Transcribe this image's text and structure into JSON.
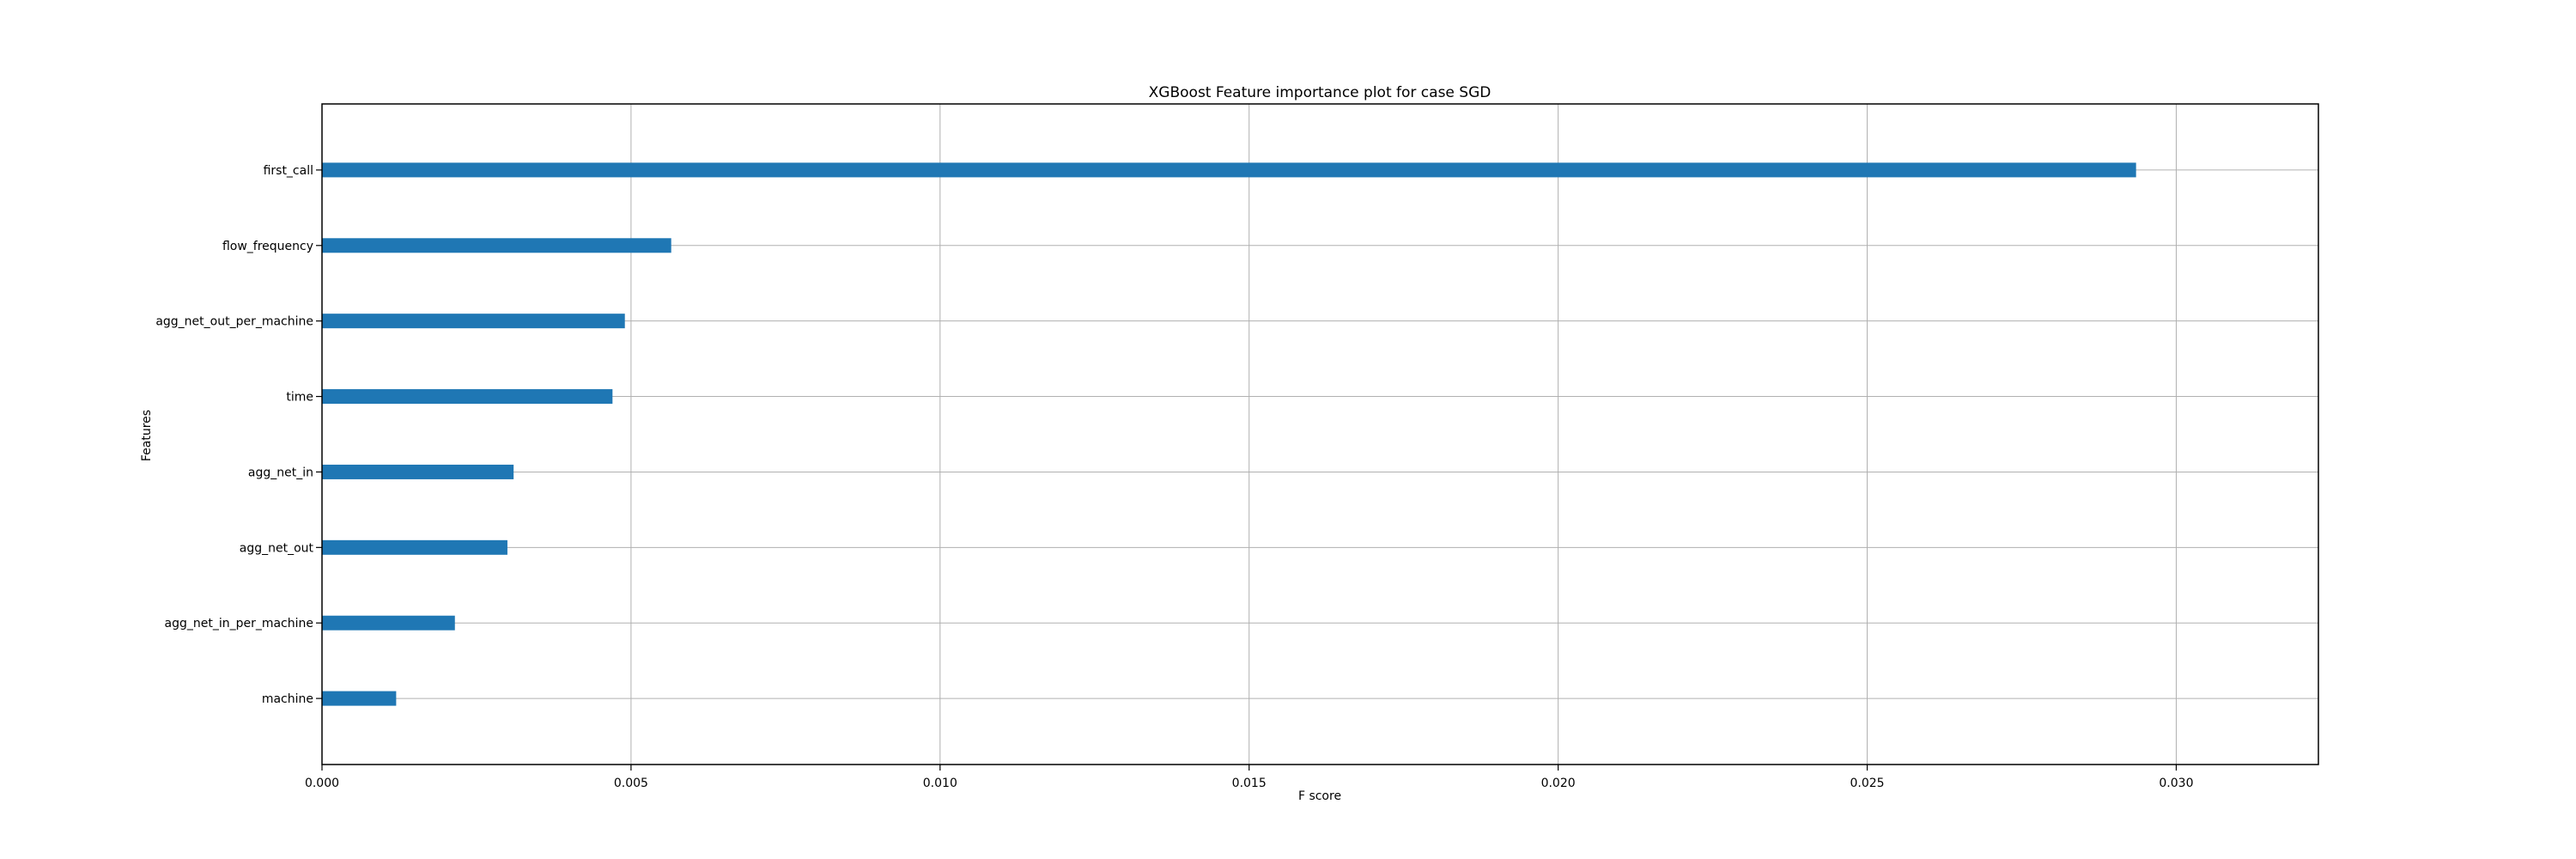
{
  "chart_data": {
    "type": "bar",
    "orientation": "horizontal",
    "title": "XGBoost Feature importance plot for case SGD",
    "xlabel": "F score",
    "ylabel": "Features",
    "categories": [
      "first_call",
      "flow_frequency",
      "agg_net_out_per_machine",
      "time",
      "agg_net_in",
      "agg_net_out",
      "agg_net_in_per_machine",
      "machine"
    ],
    "values": [
      0.02935,
      0.00565,
      0.0049,
      0.0047,
      0.0031,
      0.003,
      0.00215,
      0.0012
    ],
    "xlim": [
      0,
      0.0323
    ],
    "xticks": [
      "0.000",
      "0.005",
      "0.010",
      "0.015",
      "0.020",
      "0.025",
      "0.030"
    ],
    "xtick_values": [
      0,
      0.005,
      0.01,
      0.015,
      0.02,
      0.025,
      0.03
    ],
    "grid": true,
    "bar_color": "#1f77b4"
  }
}
